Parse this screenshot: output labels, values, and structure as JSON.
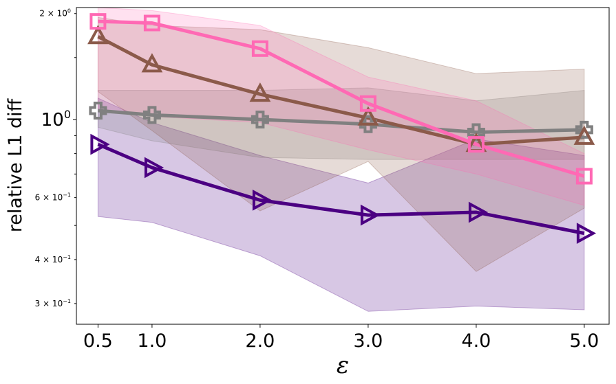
{
  "chart_data": {
    "type": "line",
    "title": "",
    "xlabel": "ε",
    "ylabel": "relative L1 diff",
    "yscale": "log",
    "xlim": [
      0.3,
      5.23
    ],
    "ylim": [
      0.262,
      2.08
    ],
    "x": [
      0.5,
      1.0,
      2.0,
      3.0,
      4.0,
      5.0
    ],
    "x_tick_labels": [
      "0.5",
      "1.0",
      "2.0",
      "3.0",
      "4.0",
      "5.0"
    ],
    "y_ticks": [
      {
        "value": 2.0,
        "base": "2 × 10",
        "exp": "0"
      },
      {
        "value": 1.0,
        "base": "10",
        "exp": "0"
      },
      {
        "value": 0.6,
        "base": "6 × 10",
        "exp": "−1"
      },
      {
        "value": 0.4,
        "base": "4 × 10",
        "exp": "−1"
      },
      {
        "value": 0.3,
        "base": "3 × 10",
        "exp": "−1"
      }
    ],
    "series": [
      {
        "name": "purple-triangle-right",
        "color": "#4b0082",
        "marker": "triangle-right",
        "values": [
          0.85,
          0.73,
          0.59,
          0.535,
          0.545,
          0.475
        ],
        "band_low": [
          0.53,
          0.51,
          0.41,
          0.285,
          0.295,
          0.288
        ],
        "band_high": [
          1.15,
          0.98,
          0.79,
          0.66,
          0.88,
          0.79
        ],
        "band_fill_opacity": 0.22
      },
      {
        "name": "gray-plus",
        "color": "#808080",
        "marker": "plus",
        "values": [
          1.06,
          1.03,
          1.0,
          0.97,
          0.92,
          0.935
        ],
        "band_low": [
          0.95,
          0.87,
          0.78,
          0.77,
          0.77,
          0.77
        ],
        "band_high": [
          1.21,
          1.21,
          1.21,
          1.23,
          1.13,
          1.21
        ],
        "band_fill_opacity": 0.22
      },
      {
        "name": "brown-triangle-up",
        "color": "#8b5a4a",
        "marker": "triangle-up",
        "values": [
          1.72,
          1.43,
          1.18,
          1.01,
          0.85,
          0.89
        ],
        "band_low": [
          1.2,
          0.93,
          0.55,
          0.76,
          0.37,
          0.56
        ],
        "band_high": [
          1.95,
          1.85,
          1.8,
          1.6,
          1.35,
          1.39
        ],
        "band_fill_opacity": 0.22
      },
      {
        "name": "pink-square",
        "color": "#ff69b4",
        "marker": "square",
        "values": [
          1.9,
          1.88,
          1.59,
          1.11,
          0.85,
          0.69
        ],
        "band_low": [
          1.07,
          1.02,
          0.98,
          0.82,
          0.7,
          0.57
        ],
        "band_high": [
          2.08,
          2.04,
          1.85,
          1.32,
          1.13,
          0.8
        ],
        "band_fill_opacity": 0.2
      }
    ]
  }
}
